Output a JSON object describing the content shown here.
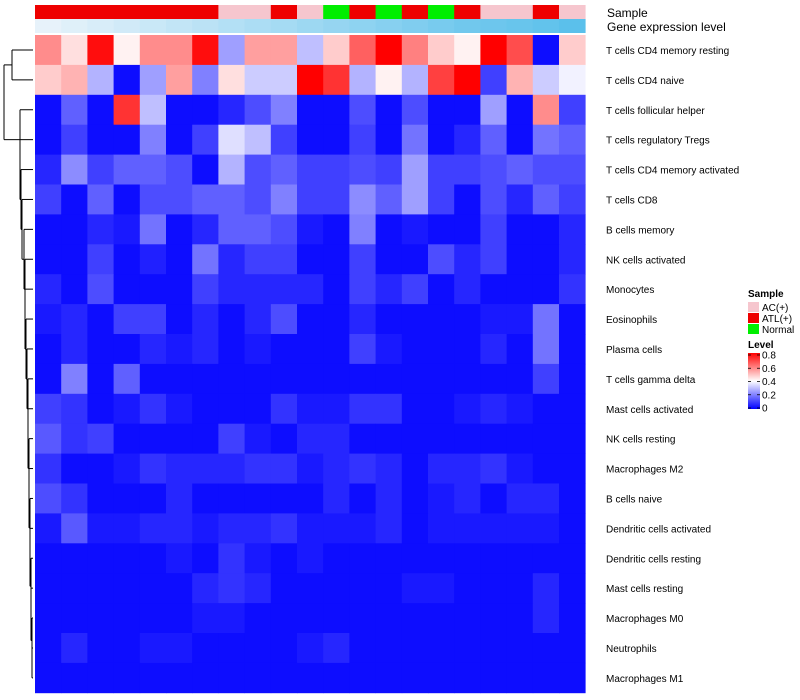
{
  "chart_data": {
    "type": "heatmap",
    "annotation_rows": [
      {
        "name": "Sample",
        "label": "Sample"
      },
      {
        "name": "Gene expression level",
        "label": "Gene expression level"
      }
    ],
    "sample_groups": [
      "ATL(+)",
      "ATL(+)",
      "ATL(+)",
      "ATL(+)",
      "ATL(+)",
      "ATL(+)",
      "ATL(+)",
      "AC(+)",
      "AC(+)",
      "ATL(+)",
      "AC(+)",
      "Normal",
      "ATL(+)",
      "Normal",
      "ATL(+)",
      "Normal",
      "ATL(+)",
      "AC(+)",
      "AC(+)",
      "ATL(+)",
      "AC(+)"
    ],
    "gene_expression": [
      0.05,
      0.1,
      0.15,
      0.2,
      0.25,
      0.3,
      0.35,
      0.4,
      0.45,
      0.5,
      0.55,
      0.6,
      0.65,
      0.7,
      0.75,
      0.8,
      0.85,
      0.88,
      0.91,
      0.95,
      1.0
    ],
    "rows": [
      "T cells CD4 memory resting",
      "T cells CD4 naive",
      "T cells follicular helper",
      "T cells regulatory  Tregs",
      "T cells CD4 memory activated",
      "T cells CD8",
      "B cells memory",
      "NK cells activated",
      "Monocytes",
      "Eosinophils",
      "Plasma cells",
      "T cells gamma delta",
      "Mast cells activated",
      "NK cells resting",
      "Macrophages M2",
      "B cells naive",
      "Dendritic cells activated",
      "Dendritic cells resting",
      "Mast cells resting",
      "Macrophages M0",
      "Neutrophils",
      "Macrophages M1"
    ],
    "values": [
      [
        0.58,
        0.45,
        0.78,
        0.42,
        0.58,
        0.58,
        0.78,
        0.25,
        0.55,
        0.55,
        0.3,
        0.48,
        0.65,
        0.8,
        0.6,
        0.48,
        0.42,
        0.8,
        0.68,
        0.02,
        0.48
      ],
      [
        0.48,
        0.52,
        0.28,
        0.02,
        0.25,
        0.55,
        0.2,
        0.45,
        0.32,
        0.32,
        0.8,
        0.72,
        0.28,
        0.42,
        0.28,
        0.7,
        0.8,
        0.1,
        0.52,
        0.32,
        0.38
      ],
      [
        0.02,
        0.15,
        0.02,
        0.72,
        0.3,
        0.02,
        0.02,
        0.06,
        0.12,
        0.2,
        0.02,
        0.02,
        0.12,
        0.02,
        0.12,
        0.02,
        0.02,
        0.25,
        0.02,
        0.58,
        0.1
      ],
      [
        0.02,
        0.1,
        0.02,
        0.02,
        0.2,
        0.02,
        0.1,
        0.35,
        0.3,
        0.1,
        0.02,
        0.02,
        0.1,
        0.02,
        0.18,
        0.02,
        0.06,
        0.15,
        0.02,
        0.18,
        0.15
      ],
      [
        0.06,
        0.22,
        0.1,
        0.15,
        0.15,
        0.12,
        0.02,
        0.28,
        0.12,
        0.15,
        0.1,
        0.1,
        0.12,
        0.1,
        0.25,
        0.1,
        0.1,
        0.12,
        0.15,
        0.12,
        0.12
      ],
      [
        0.1,
        0.02,
        0.15,
        0.02,
        0.12,
        0.12,
        0.15,
        0.15,
        0.12,
        0.2,
        0.1,
        0.1,
        0.22,
        0.15,
        0.25,
        0.1,
        0.02,
        0.12,
        0.06,
        0.15,
        0.1
      ],
      [
        0.02,
        0.02,
        0.06,
        0.04,
        0.18,
        0.02,
        0.06,
        0.15,
        0.15,
        0.12,
        0.04,
        0.02,
        0.2,
        0.02,
        0.04,
        0.02,
        0.02,
        0.1,
        0.02,
        0.02,
        0.06
      ],
      [
        0.02,
        0.02,
        0.1,
        0.02,
        0.05,
        0.02,
        0.18,
        0.06,
        0.1,
        0.1,
        0.02,
        0.02,
        0.1,
        0.02,
        0.02,
        0.12,
        0.06,
        0.1,
        0.02,
        0.02,
        0.06
      ],
      [
        0.06,
        0.02,
        0.12,
        0.02,
        0.02,
        0.02,
        0.1,
        0.06,
        0.06,
        0.06,
        0.06,
        0.02,
        0.1,
        0.06,
        0.1,
        0.02,
        0.06,
        0.02,
        0.02,
        0.02,
        0.08
      ],
      [
        0.04,
        0.06,
        0.02,
        0.1,
        0.1,
        0.02,
        0.06,
        0.02,
        0.06,
        0.12,
        0.02,
        0.02,
        0.06,
        0.02,
        0.02,
        0.02,
        0.02,
        0.04,
        0.04,
        0.18,
        0.02
      ],
      [
        0.02,
        0.06,
        0.02,
        0.02,
        0.06,
        0.04,
        0.06,
        0.02,
        0.04,
        0.02,
        0.02,
        0.02,
        0.1,
        0.04,
        0.02,
        0.02,
        0.02,
        0.06,
        0.02,
        0.18,
        0.02
      ],
      [
        0.02,
        0.2,
        0.02,
        0.15,
        0.02,
        0.02,
        0.02,
        0.02,
        0.02,
        0.02,
        0.02,
        0.02,
        0.02,
        0.02,
        0.02,
        0.02,
        0.02,
        0.02,
        0.02,
        0.1,
        0.02
      ],
      [
        0.1,
        0.08,
        0.02,
        0.04,
        0.08,
        0.04,
        0.02,
        0.02,
        0.02,
        0.08,
        0.04,
        0.04,
        0.08,
        0.08,
        0.02,
        0.02,
        0.04,
        0.06,
        0.04,
        0.02,
        0.02
      ],
      [
        0.14,
        0.08,
        0.1,
        0.02,
        0.02,
        0.02,
        0.02,
        0.1,
        0.04,
        0.02,
        0.06,
        0.06,
        0.02,
        0.02,
        0.02,
        0.02,
        0.02,
        0.02,
        0.02,
        0.02,
        0.02
      ],
      [
        0.08,
        0.02,
        0.02,
        0.04,
        0.08,
        0.06,
        0.06,
        0.06,
        0.08,
        0.08,
        0.04,
        0.06,
        0.08,
        0.06,
        0.02,
        0.06,
        0.06,
        0.08,
        0.04,
        0.02,
        0.02
      ],
      [
        0.12,
        0.08,
        0.02,
        0.02,
        0.02,
        0.06,
        0.02,
        0.02,
        0.02,
        0.02,
        0.02,
        0.06,
        0.02,
        0.06,
        0.02,
        0.04,
        0.06,
        0.02,
        0.06,
        0.06,
        0.02
      ],
      [
        0.04,
        0.14,
        0.04,
        0.04,
        0.06,
        0.06,
        0.04,
        0.06,
        0.06,
        0.08,
        0.04,
        0.04,
        0.04,
        0.06,
        0.02,
        0.04,
        0.04,
        0.04,
        0.04,
        0.04,
        0.02
      ],
      [
        0.02,
        0.02,
        0.02,
        0.02,
        0.02,
        0.04,
        0.02,
        0.08,
        0.04,
        0.02,
        0.04,
        0.02,
        0.02,
        0.02,
        0.02,
        0.02,
        0.02,
        0.02,
        0.02,
        0.02,
        0.02
      ],
      [
        0.02,
        0.02,
        0.02,
        0.02,
        0.02,
        0.02,
        0.06,
        0.08,
        0.06,
        0.02,
        0.02,
        0.02,
        0.02,
        0.02,
        0.04,
        0.04,
        0.02,
        0.02,
        0.02,
        0.06,
        0.02
      ],
      [
        0.02,
        0.02,
        0.02,
        0.02,
        0.02,
        0.02,
        0.04,
        0.04,
        0.02,
        0.02,
        0.02,
        0.02,
        0.02,
        0.02,
        0.02,
        0.02,
        0.02,
        0.02,
        0.02,
        0.06,
        0.02
      ],
      [
        0.02,
        0.06,
        0.02,
        0.02,
        0.04,
        0.04,
        0.02,
        0.02,
        0.02,
        0.02,
        0.04,
        0.06,
        0.02,
        0.02,
        0.02,
        0.02,
        0.02,
        0.02,
        0.02,
        0.02,
        0.02
      ],
      [
        0.02,
        0.02,
        0.02,
        0.02,
        0.02,
        0.02,
        0.02,
        0.02,
        0.02,
        0.02,
        0.02,
        0.02,
        0.02,
        0.02,
        0.02,
        0.02,
        0.02,
        0.02,
        0.02,
        0.02,
        0.02
      ]
    ],
    "legend": {
      "sample_title": "Sample",
      "sample_items": [
        {
          "label": "AC(+)",
          "color": "#f6c6ce"
        },
        {
          "label": "ATL(+)",
          "color": "#ee0000"
        },
        {
          "label": "Normal",
          "color": "#00ee00"
        }
      ],
      "level_title": "Level",
      "level_ticks": [
        "0.8",
        "0.6",
        "0.4",
        "0.2",
        "0"
      ],
      "level_tick_values": [
        0.8,
        0.6,
        0.4,
        0.2,
        0
      ],
      "level_range": [
        0,
        0.8
      ]
    },
    "colors": {
      "low": "#0000ff",
      "mid": "#ffffff",
      "high": "#ff0000",
      "gene_low": "#eef5fb",
      "gene_high": "#5bc0eb"
    }
  }
}
